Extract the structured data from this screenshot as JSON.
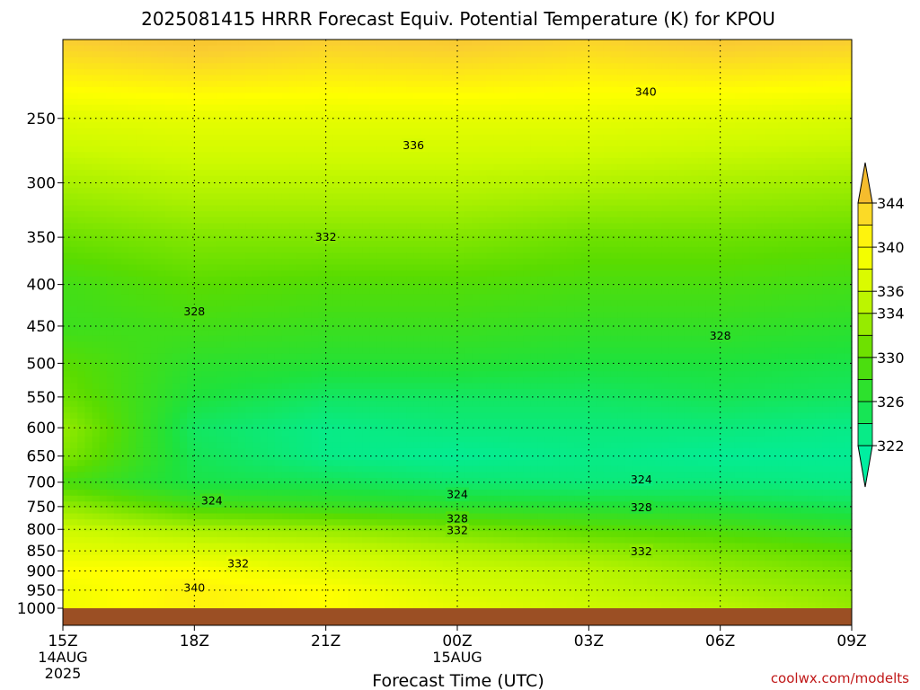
{
  "chart_data": {
    "type": "heatmap",
    "title": "2025081415 HRRR Forecast Equiv. Potential Temperature (K) for KPOU",
    "xlabel": "Forecast Time (UTC)",
    "ylabel": "",
    "credit": "coolwx.com/modelts",
    "x_ticks": [
      {
        "label": "15Z",
        "sub1": "14AUG",
        "sub2": "2025",
        "hour": 0
      },
      {
        "label": "18Z",
        "sub1": "",
        "sub2": "",
        "hour": 3
      },
      {
        "label": "21Z",
        "sub1": "",
        "sub2": "",
        "hour": 6
      },
      {
        "label": "00Z",
        "sub1": "15AUG",
        "sub2": "",
        "hour": 9
      },
      {
        "label": "03Z",
        "sub1": "",
        "sub2": "",
        "hour": 12
      },
      {
        "label": "06Z",
        "sub1": "",
        "sub2": "",
        "hour": 15
      },
      {
        "label": "09Z",
        "sub1": "",
        "sub2": "",
        "hour": 18
      }
    ],
    "xlim": [
      0,
      18
    ],
    "y_scale": "log",
    "ylim": [
      1000,
      200
    ],
    "y_ticks": [
      250,
      300,
      350,
      400,
      450,
      500,
      550,
      600,
      650,
      700,
      750,
      800,
      850,
      900,
      950,
      1000
    ],
    "colorbar": {
      "levels": [
        322,
        324,
        326,
        328,
        330,
        332,
        334,
        336,
        338,
        340,
        342,
        344
      ],
      "labels": [
        "322",
        "326",
        "330",
        "334",
        "336",
        "340",
        "344"
      ],
      "extend": "both"
    },
    "contour_labels": [
      {
        "text": "340",
        "hour": 13.3,
        "p": 232
      },
      {
        "text": "336",
        "hour": 8.0,
        "p": 270
      },
      {
        "text": "332",
        "hour": 6.0,
        "p": 350
      },
      {
        "text": "328",
        "hour": 3.0,
        "p": 432
      },
      {
        "text": "328",
        "hour": 15.0,
        "p": 463
      },
      {
        "text": "324",
        "hour": 13.2,
        "p": 695
      },
      {
        "text": "324",
        "hour": 3.4,
        "p": 738
      },
      {
        "text": "324",
        "hour": 9.0,
        "p": 725
      },
      {
        "text": "328",
        "hour": 13.2,
        "p": 752
      },
      {
        "text": "328",
        "hour": 9.0,
        "p": 776
      },
      {
        "text": "332",
        "hour": 9.0,
        "p": 803
      },
      {
        "text": "332",
        "hour": 13.2,
        "p": 852
      },
      {
        "text": "332",
        "hour": 4.0,
        "p": 882
      },
      {
        "text": "340",
        "hour": 3.0,
        "p": 944
      }
    ],
    "profile_pressures": [
      200,
      250,
      300,
      350,
      400,
      450,
      500,
      550,
      600,
      650,
      700,
      750,
      800,
      850,
      900,
      950,
      1000
    ],
    "profile_hours": [
      0,
      3,
      6,
      9,
      12,
      15,
      18
    ],
    "theta_e_K": [
      [
        344,
        337.5,
        334,
        331,
        328.5,
        328,
        330,
        331,
        333,
        332,
        329,
        333,
        336,
        338,
        340,
        339,
        339
      ],
      [
        345,
        338,
        335,
        332,
        330,
        328.5,
        327,
        326,
        324.5,
        325,
        325.5,
        329,
        334,
        337,
        340,
        341,
        341
      ],
      [
        344,
        338,
        335,
        332,
        329.5,
        328,
        326.5,
        324.5,
        323,
        323,
        325,
        328,
        333,
        336,
        338,
        340,
        340
      ],
      [
        344.5,
        338,
        335,
        332,
        329.5,
        328,
        326.5,
        324.5,
        323.5,
        322.5,
        324,
        327,
        331.5,
        334.5,
        336,
        337,
        338
      ],
      [
        343.5,
        338,
        334.5,
        331,
        329,
        327.5,
        326,
        324.5,
        323.5,
        323,
        323.5,
        326.5,
        330,
        333,
        335,
        335.5,
        336
      ],
      [
        344.5,
        337.5,
        334,
        331,
        329,
        327.5,
        326,
        325,
        323.5,
        322.5,
        323.5,
        326,
        329,
        331.5,
        333,
        334,
        335
      ],
      [
        344,
        337,
        333.5,
        330.5,
        328.5,
        327,
        325.5,
        324.5,
        323,
        322.5,
        323,
        325,
        327.5,
        330,
        331.5,
        332.5,
        333
      ]
    ]
  }
}
